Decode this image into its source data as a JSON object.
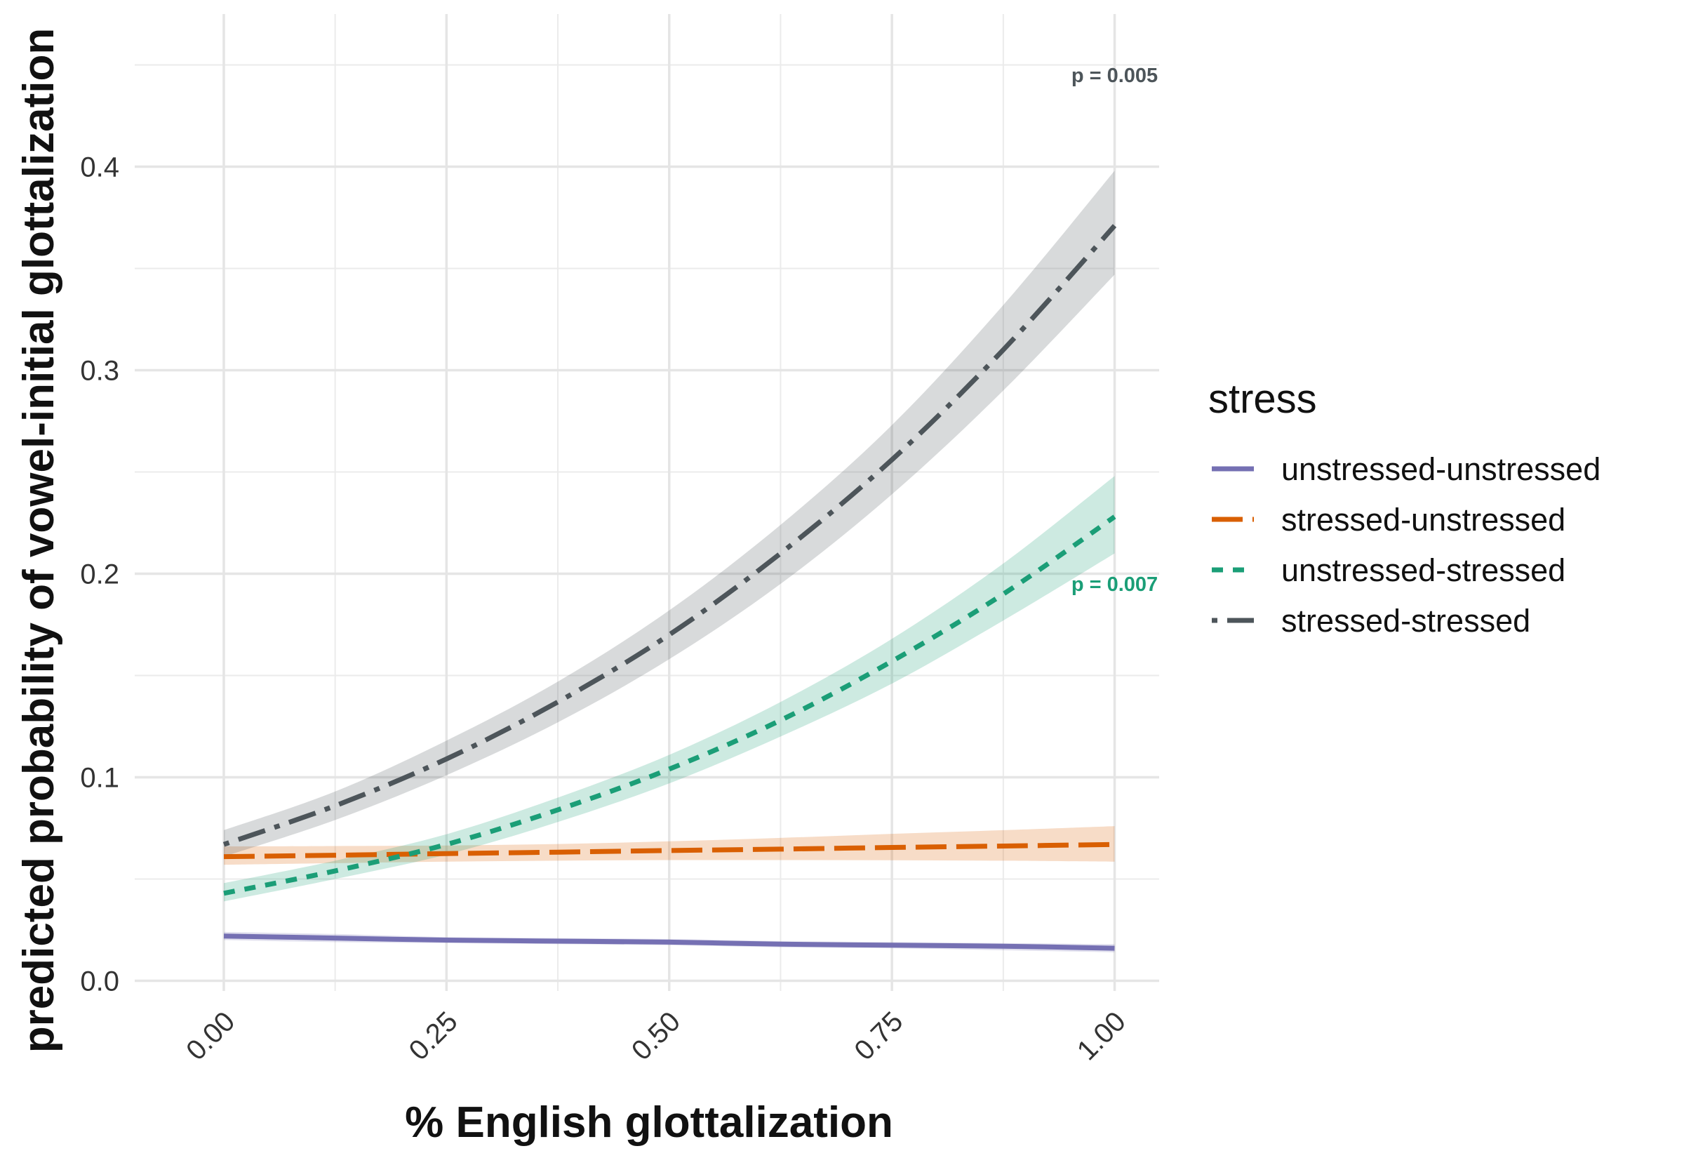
{
  "chart_data": {
    "type": "line",
    "title": "",
    "xlabel": "% English glottalization",
    "ylabel": "predicted probability of vowel-initial glottalization",
    "xlim": [
      -0.1,
      1.05
    ],
    "ylim": [
      -0.005,
      0.475
    ],
    "x_ticks": [
      "0.00",
      "0.25",
      "0.50",
      "0.75",
      "1.00"
    ],
    "x_tick_values": [
      0,
      0.25,
      0.5,
      0.75,
      1.0
    ],
    "y_ticks": [
      "0.0",
      "0.1",
      "0.2",
      "0.3",
      "0.4"
    ],
    "y_tick_values": [
      0,
      0.1,
      0.2,
      0.3,
      0.4
    ],
    "grid": true,
    "legend_title": "stress",
    "legend_position": "right",
    "x": [
      0,
      0.125,
      0.25,
      0.375,
      0.5,
      0.625,
      0.75,
      0.875,
      1.0
    ],
    "series": [
      {
        "name": "unstressed-unstressed",
        "color": "#7570b3",
        "dash": "solid",
        "values": [
          0.022,
          0.021,
          0.02,
          0.0195,
          0.019,
          0.018,
          0.0175,
          0.017,
          0.016
        ],
        "lower": [
          0.02,
          0.019,
          0.0185,
          0.018,
          0.0175,
          0.0165,
          0.016,
          0.015,
          0.014
        ],
        "upper": [
          0.024,
          0.023,
          0.0215,
          0.021,
          0.0205,
          0.0195,
          0.019,
          0.0185,
          0.018
        ]
      },
      {
        "name": "stressed-unstressed",
        "color": "#d95f02",
        "dash": "longdash",
        "values": [
          0.061,
          0.0617,
          0.0625,
          0.0632,
          0.064,
          0.0647,
          0.0655,
          0.0662,
          0.067
        ],
        "lower": [
          0.057,
          0.0578,
          0.0585,
          0.059,
          0.0593,
          0.0593,
          0.0592,
          0.059,
          0.0585
        ],
        "upper": [
          0.066,
          0.0662,
          0.0665,
          0.0672,
          0.0685,
          0.0702,
          0.0722,
          0.074,
          0.076
        ]
      },
      {
        "name": "unstressed-stressed",
        "color": "#1b9e77",
        "dash": "dashed",
        "values": [
          0.043,
          0.054,
          0.067,
          0.084,
          0.104,
          0.128,
          0.157,
          0.19,
          0.228
        ],
        "lower": [
          0.039,
          0.05,
          0.062,
          0.078,
          0.097,
          0.12,
          0.146,
          0.177,
          0.21
        ],
        "upper": [
          0.048,
          0.059,
          0.072,
          0.09,
          0.111,
          0.137,
          0.168,
          0.205,
          0.248
        ]
      },
      {
        "name": "stressed-stressed",
        "color": "#4d555a",
        "dash": "dotdash",
        "values": [
          0.067,
          0.086,
          0.109,
          0.137,
          0.17,
          0.21,
          0.256,
          0.31,
          0.371
        ],
        "lower": [
          0.061,
          0.079,
          0.101,
          0.127,
          0.158,
          0.195,
          0.239,
          0.29,
          0.347
        ],
        "upper": [
          0.074,
          0.093,
          0.118,
          0.147,
          0.182,
          0.224,
          0.273,
          0.332,
          0.398
        ]
      }
    ],
    "annotations": [
      {
        "text": "p = 0.005",
        "x": 1.0,
        "y": 0.445,
        "color": "#4d555a"
      },
      {
        "text": "p = 0.007",
        "x": 1.0,
        "y": 0.195,
        "color": "#1b9e77"
      }
    ]
  }
}
